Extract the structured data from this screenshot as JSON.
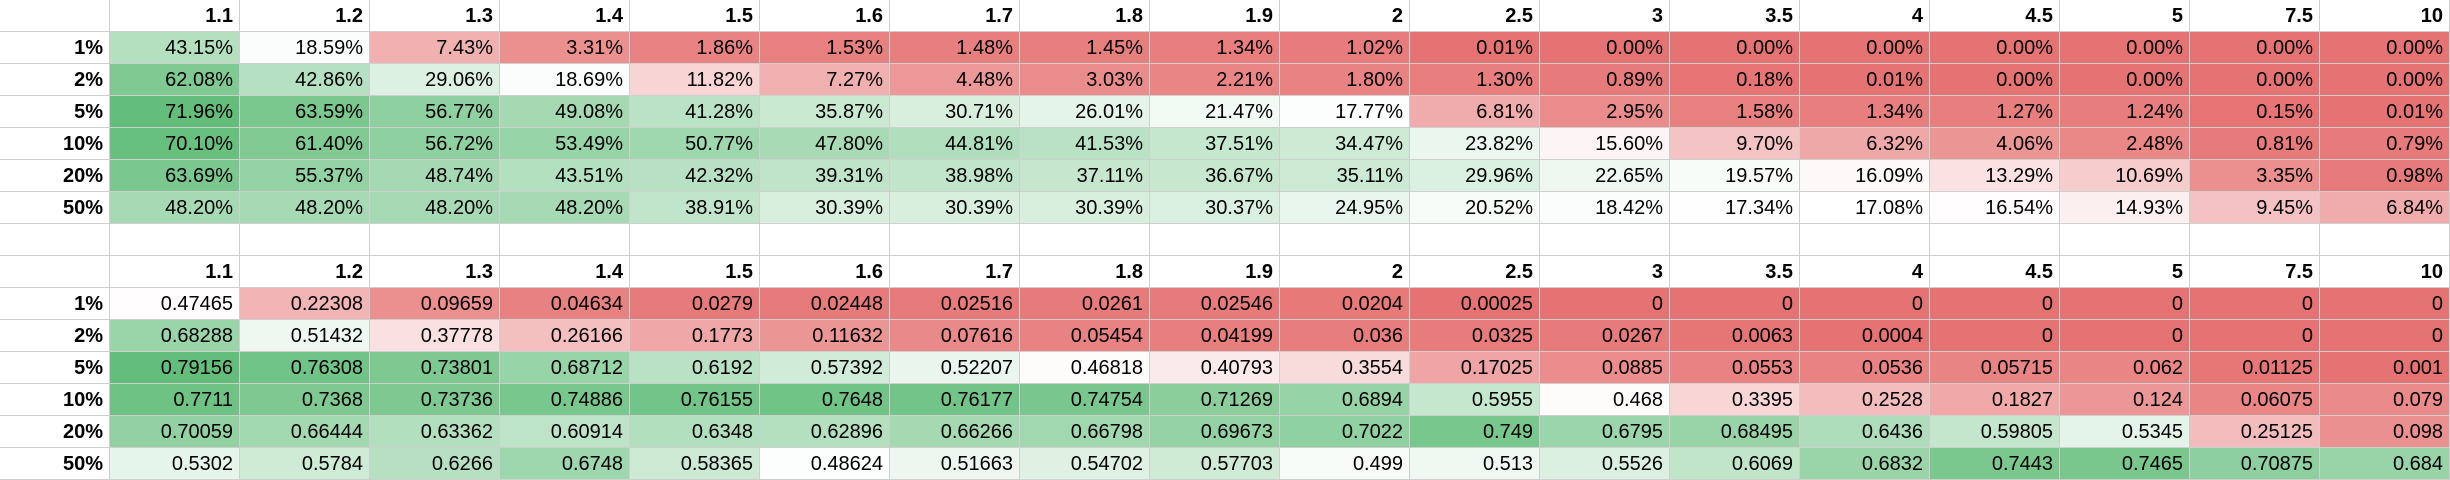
{
  "col_headers": [
    "1.1",
    "1.2",
    "1.3",
    "1.4",
    "1.5",
    "1.6",
    "1.7",
    "1.8",
    "1.9",
    "2",
    "2.5",
    "3",
    "3.5",
    "4",
    "4.5",
    "5",
    "7.5",
    "10"
  ],
  "row_headers": [
    "1%",
    "2%",
    "5%",
    "10%",
    "20%",
    "50%"
  ],
  "colors": {
    "low_red": "#e67373",
    "mid_white": "#ffffff",
    "high_green": "#63be7b",
    "grid_line": "#cfcfcf"
  },
  "table1": {
    "rows": [
      [
        "43.15%",
        "18.59%",
        "7.43%",
        "3.31%",
        "1.86%",
        "1.53%",
        "1.48%",
        "1.45%",
        "1.34%",
        "1.02%",
        "0.01%",
        "0.00%",
        "0.00%",
        "0.00%",
        "0.00%",
        "0.00%",
        "0.00%",
        "0.00%"
      ],
      [
        "62.08%",
        "42.86%",
        "29.06%",
        "18.69%",
        "11.82%",
        "7.27%",
        "4.48%",
        "3.03%",
        "2.21%",
        "1.80%",
        "1.30%",
        "0.89%",
        "0.18%",
        "0.01%",
        "0.00%",
        "0.00%",
        "0.00%",
        "0.00%"
      ],
      [
        "71.96%",
        "63.59%",
        "56.77%",
        "49.08%",
        "41.28%",
        "35.87%",
        "30.71%",
        "26.01%",
        "21.47%",
        "17.77%",
        "6.81%",
        "2.95%",
        "1.58%",
        "1.34%",
        "1.27%",
        "1.24%",
        "0.15%",
        "0.01%"
      ],
      [
        "70.10%",
        "61.40%",
        "56.72%",
        "53.49%",
        "50.77%",
        "47.80%",
        "44.81%",
        "41.53%",
        "37.51%",
        "34.47%",
        "23.82%",
        "15.60%",
        "9.70%",
        "6.32%",
        "4.06%",
        "2.48%",
        "0.81%",
        "0.79%"
      ],
      [
        "63.69%",
        "55.37%",
        "48.74%",
        "43.51%",
        "42.32%",
        "39.31%",
        "38.98%",
        "37.11%",
        "36.67%",
        "35.11%",
        "29.96%",
        "22.65%",
        "19.57%",
        "16.09%",
        "13.29%",
        "10.69%",
        "3.35%",
        "0.98%"
      ],
      [
        "48.20%",
        "48.20%",
        "48.20%",
        "48.20%",
        "38.91%",
        "30.39%",
        "30.39%",
        "30.39%",
        "30.37%",
        "24.95%",
        "20.52%",
        "18.42%",
        "17.34%",
        "17.08%",
        "16.54%",
        "14.93%",
        "9.45%",
        "6.84%"
      ]
    ]
  },
  "table2": {
    "rows": [
      [
        "0.47465",
        "0.22308",
        "0.09659",
        "0.04634",
        "0.0279",
        "0.02448",
        "0.02516",
        "0.0261",
        "0.02546",
        "0.0204",
        "0.00025",
        "0",
        "0",
        "0",
        "0",
        "0",
        "0",
        "0"
      ],
      [
        "0.68288",
        "0.51432",
        "0.37778",
        "0.26166",
        "0.1773",
        "0.11632",
        "0.07616",
        "0.05454",
        "0.04199",
        "0.036",
        "0.0325",
        "0.0267",
        "0.0063",
        "0.0004",
        "0",
        "0",
        "0",
        "0"
      ],
      [
        "0.79156",
        "0.76308",
        "0.73801",
        "0.68712",
        "0.6192",
        "0.57392",
        "0.52207",
        "0.46818",
        "0.40793",
        "0.3554",
        "0.17025",
        "0.0885",
        "0.0553",
        "0.0536",
        "0.05715",
        "0.062",
        "0.01125",
        "0.001"
      ],
      [
        "0.7711",
        "0.7368",
        "0.73736",
        "0.74886",
        "0.76155",
        "0.7648",
        "0.76177",
        "0.74754",
        "0.71269",
        "0.6894",
        "0.5955",
        "0.468",
        "0.3395",
        "0.2528",
        "0.1827",
        "0.124",
        "0.06075",
        "0.079"
      ],
      [
        "0.70059",
        "0.66444",
        "0.63362",
        "0.60914",
        "0.6348",
        "0.62896",
        "0.66266",
        "0.66798",
        "0.69673",
        "0.7022",
        "0.749",
        "0.6795",
        "0.68495",
        "0.6436",
        "0.59805",
        "0.5345",
        "0.25125",
        "0.098"
      ],
      [
        "0.5302",
        "0.5784",
        "0.6266",
        "0.6748",
        "0.58365",
        "0.48624",
        "0.51663",
        "0.54702",
        "0.57703",
        "0.499",
        "0.513",
        "0.5526",
        "0.6069",
        "0.6832",
        "0.7443",
        "0.7465",
        "0.70875",
        "0.684"
      ]
    ]
  }
}
